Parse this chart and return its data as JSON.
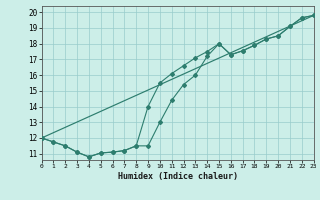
{
  "xlabel": "Humidex (Indice chaleur)",
  "background_color": "#cceee8",
  "grid_color": "#99cccc",
  "line_color": "#2d7d6e",
  "xlim": [
    0,
    23
  ],
  "ylim": [
    10.6,
    20.4
  ],
  "xticks": [
    0,
    1,
    2,
    3,
    4,
    5,
    6,
    7,
    8,
    9,
    10,
    11,
    12,
    13,
    14,
    15,
    16,
    17,
    18,
    19,
    20,
    21,
    22,
    23
  ],
  "yticks": [
    11,
    12,
    13,
    14,
    15,
    16,
    17,
    18,
    19,
    20
  ],
  "line1_x": [
    0,
    1,
    2,
    3,
    4,
    5,
    6,
    7,
    8,
    9,
    10,
    11,
    12,
    13,
    14,
    15,
    16,
    17,
    18,
    19,
    20,
    21,
    22,
    23
  ],
  "line1_y": [
    12.0,
    11.75,
    11.5,
    11.1,
    10.8,
    11.05,
    11.1,
    11.2,
    11.5,
    14.0,
    15.5,
    16.1,
    16.6,
    17.1,
    17.5,
    18.0,
    17.3,
    17.55,
    17.9,
    18.3,
    18.5,
    19.1,
    19.65,
    19.8
  ],
  "line2_x": [
    0,
    1,
    2,
    3,
    4,
    5,
    6,
    7,
    8,
    9,
    10,
    11,
    12,
    13,
    14,
    15,
    16,
    17,
    18,
    19,
    20,
    21,
    22,
    23
  ],
  "line2_y": [
    12.0,
    11.75,
    11.5,
    11.1,
    10.8,
    11.05,
    11.1,
    11.2,
    11.5,
    11.5,
    13.0,
    14.4,
    15.4,
    16.0,
    17.2,
    18.0,
    17.3,
    17.55,
    17.9,
    18.3,
    18.5,
    19.1,
    19.65,
    19.8
  ],
  "line3_x": [
    0,
    23
  ],
  "line3_y": [
    12.0,
    19.8
  ]
}
